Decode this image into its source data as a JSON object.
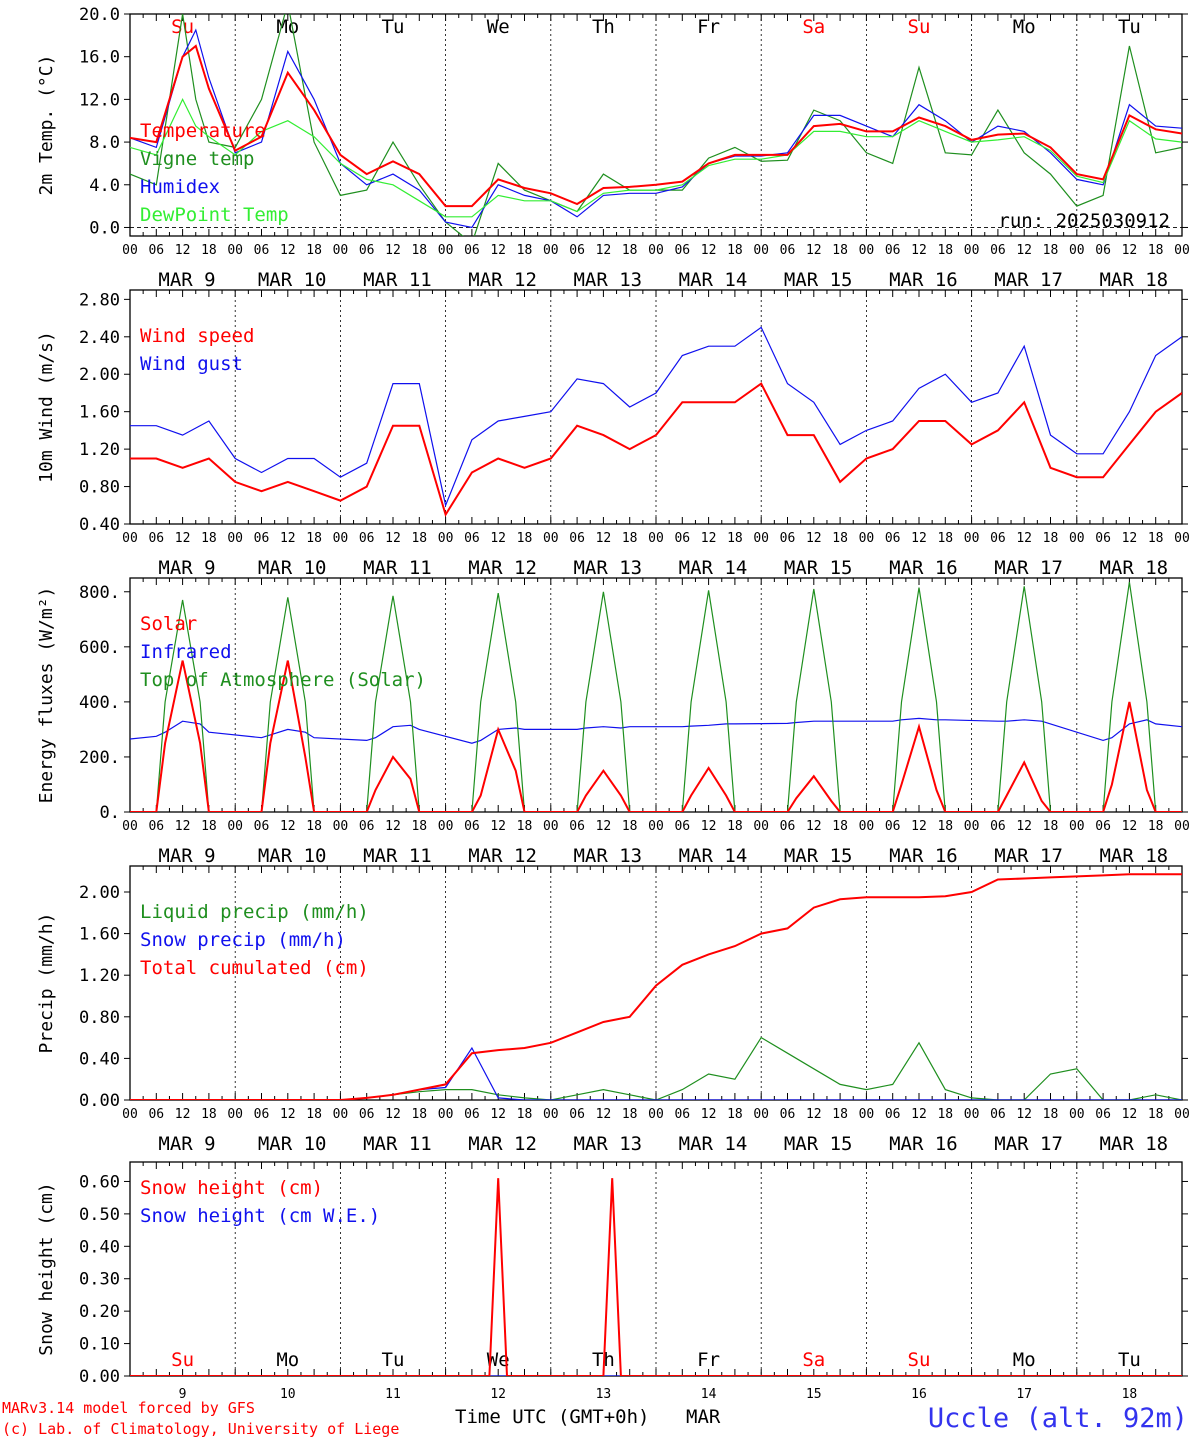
{
  "days": [
    {
      "abbr": "Su",
      "date": "MAR  9",
      "num": "9",
      "weekend": true
    },
    {
      "abbr": "Mo",
      "date": "MAR 10",
      "num": "10",
      "weekend": false
    },
    {
      "abbr": "Tu",
      "date": "MAR 11",
      "num": "11",
      "weekend": false
    },
    {
      "abbr": "We",
      "date": "MAR 12",
      "num": "12",
      "weekend": false
    },
    {
      "abbr": "Th",
      "date": "MAR 13",
      "num": "13",
      "weekend": false
    },
    {
      "abbr": "Fr",
      "date": "MAR 14",
      "num": "14",
      "weekend": false
    },
    {
      "abbr": "Sa",
      "date": "MAR 15",
      "num": "15",
      "weekend": true
    },
    {
      "abbr": "Su",
      "date": "MAR 16",
      "num": "16",
      "weekend": true
    },
    {
      "abbr": "Mo",
      "date": "MAR 17",
      "num": "17",
      "weekend": false
    },
    {
      "abbr": "Tu",
      "date": "MAR 18",
      "num": "18",
      "weekend": false
    }
  ],
  "hour_labels": [
    "00",
    "06",
    "12",
    "18"
  ],
  "colors": {
    "red": "#ff0000",
    "green": "#1f8f1f",
    "blue": "#1010ee",
    "lightgreen": "#33ee33",
    "site": "#3333ee"
  },
  "footer": {
    "model": "MARv3.14 model forced by GFS",
    "copyright": "(c) Lab. of Climatology, University of Liege",
    "xlabel": "Time UTC (GMT+0h)",
    "month": "MAR",
    "site": "Uccle (alt. 92m)"
  },
  "chart_data": [
    {
      "type": "line",
      "ylabel": "2m Temp. (°C)",
      "ylim": [
        -0.8,
        20
      ],
      "yticks": [
        "0.0",
        "4.0",
        "8.0",
        "12.0",
        "16.0",
        "20.0"
      ],
      "ytick_values": [
        0,
        4,
        8,
        12,
        16,
        20
      ],
      "zero_dashed": true,
      "annotation": "run: 2025030912",
      "x_hours": [
        0,
        6,
        12,
        15,
        18,
        24,
        30,
        36,
        42,
        48,
        54,
        60,
        66,
        72,
        78,
        84,
        90,
        96,
        102,
        108,
        114,
        120,
        126,
        132,
        138,
        144,
        150,
        156,
        162,
        168,
        174,
        180,
        186,
        192,
        198,
        204,
        210,
        216,
        222,
        228,
        234,
        240
      ],
      "series": [
        {
          "name": "Temperature",
          "color": "red",
          "values": [
            8.4,
            8.0,
            16.0,
            17.0,
            13.0,
            7.2,
            8.5,
            14.5,
            11.0,
            6.8,
            5.0,
            6.2,
            5.0,
            2.0,
            2.0,
            4.5,
            3.7,
            3.2,
            2.2,
            3.7,
            3.8,
            4.0,
            4.3,
            6.0,
            6.8,
            6.8,
            6.8,
            9.5,
            9.7,
            9.0,
            9.0,
            10.3,
            9.5,
            8.2,
            8.7,
            8.8,
            7.5,
            5.0,
            4.5,
            10.5,
            9.2,
            8.8
          ]
        },
        {
          "name": "Vigne temp",
          "color": "green",
          "values": [
            5.0,
            4.0,
            20.0,
            12.0,
            8.0,
            7.5,
            12.0,
            21.0,
            8.0,
            3.0,
            3.5,
            8.0,
            4.0,
            0.5,
            -1.5,
            6.0,
            3.5,
            2.5,
            1.5,
            5.0,
            3.5,
            3.5,
            3.5,
            6.5,
            7.5,
            6.2,
            6.3,
            11.0,
            10.0,
            7.0,
            6.0,
            15.0,
            7.0,
            6.8,
            11.0,
            7.0,
            5.0,
            2.0,
            3.0,
            17.0,
            7.0,
            7.5
          ]
        },
        {
          "name": "Humidex",
          "color": "blue",
          "values": [
            8.4,
            7.5,
            16.0,
            18.5,
            14.0,
            7.0,
            8.0,
            16.5,
            12.0,
            6.0,
            4.0,
            5.0,
            3.5,
            0.5,
            0.0,
            4.0,
            3.0,
            2.5,
            1.0,
            3.0,
            3.2,
            3.2,
            3.8,
            6.0,
            6.7,
            6.7,
            7.0,
            10.5,
            10.5,
            9.5,
            8.5,
            11.5,
            10.0,
            8.0,
            9.5,
            9.0,
            7.0,
            4.5,
            4.0,
            11.5,
            9.5,
            9.3
          ]
        },
        {
          "name": "DewPoint Temp",
          "color": "lightgreen",
          "values": [
            7.5,
            6.8,
            12.0,
            9.5,
            8.5,
            6.8,
            9.0,
            10.0,
            8.5,
            6.0,
            4.5,
            4.0,
            2.5,
            1.0,
            1.0,
            3.0,
            2.5,
            2.5,
            1.5,
            3.2,
            3.5,
            3.5,
            4.0,
            5.8,
            6.4,
            6.4,
            6.8,
            9.0,
            9.0,
            8.5,
            8.5,
            10.0,
            9.0,
            8.0,
            8.2,
            8.5,
            7.2,
            4.8,
            4.2,
            10.0,
            8.3,
            8.0
          ]
        }
      ]
    },
    {
      "type": "line",
      "ylabel": "10m Wind (m/s)",
      "ylim": [
        0.4,
        2.9
      ],
      "yticks": [
        "0.40",
        "0.80",
        "1.20",
        "1.60",
        "2.00",
        "2.40",
        "2.80"
      ],
      "ytick_values": [
        0.4,
        0.8,
        1.2,
        1.6,
        2.0,
        2.4,
        2.8
      ],
      "x_hours": [
        0,
        6,
        12,
        18,
        24,
        30,
        36,
        42,
        48,
        54,
        60,
        66,
        72,
        78,
        84,
        90,
        96,
        102,
        108,
        114,
        120,
        126,
        132,
        138,
        144,
        150,
        156,
        162,
        168,
        174,
        180,
        186,
        192,
        198,
        204,
        210,
        216,
        222,
        228,
        234,
        240
      ],
      "series": [
        {
          "name": "Wind speed",
          "color": "red",
          "values": [
            1.1,
            1.1,
            1.0,
            1.1,
            0.85,
            0.75,
            0.85,
            0.75,
            0.65,
            0.8,
            1.45,
            1.45,
            0.5,
            0.95,
            1.1,
            1.0,
            1.1,
            1.45,
            1.35,
            1.2,
            1.35,
            1.7,
            1.7,
            1.7,
            1.9,
            1.35,
            1.35,
            0.85,
            1.1,
            1.2,
            1.5,
            1.5,
            1.25,
            1.4,
            1.7,
            1.0,
            0.9,
            0.9,
            1.25,
            1.6,
            1.8
          ]
        },
        {
          "name": "Wind gust",
          "color": "blue",
          "values": [
            1.45,
            1.45,
            1.35,
            1.5,
            1.1,
            0.95,
            1.1,
            1.1,
            0.9,
            1.05,
            1.9,
            1.9,
            0.6,
            1.3,
            1.5,
            1.55,
            1.6,
            1.95,
            1.9,
            1.65,
            1.8,
            2.2,
            2.3,
            2.3,
            2.5,
            1.9,
            1.7,
            1.25,
            1.4,
            1.5,
            1.85,
            2.0,
            1.7,
            1.8,
            2.3,
            1.35,
            1.15,
            1.15,
            1.6,
            2.2,
            2.4
          ]
        }
      ]
    },
    {
      "type": "line",
      "ylabel": "Energy fluxes (W/m²)",
      "ylim": [
        0,
        850
      ],
      "yticks": [
        "0.",
        "200.",
        "400.",
        "600.",
        "800."
      ],
      "ytick_values": [
        0,
        200,
        400,
        600,
        800
      ],
      "x_hours": [
        0,
        6,
        8,
        12,
        16,
        18,
        30,
        32,
        36,
        40,
        42,
        54,
        56,
        60,
        64,
        66,
        78,
        80,
        84,
        88,
        90,
        102,
        104,
        108,
        112,
        114,
        126,
        128,
        132,
        136,
        138,
        150,
        152,
        156,
        160,
        162,
        174,
        176,
        180,
        184,
        186,
        198,
        200,
        204,
        208,
        210,
        222,
        224,
        228,
        232,
        234,
        240
      ],
      "series": [
        {
          "name": "Solar",
          "color": "red",
          "values": [
            0,
            0,
            250,
            550,
            250,
            0,
            0,
            250,
            550,
            200,
            0,
            0,
            80,
            200,
            120,
            0,
            0,
            60,
            300,
            150,
            0,
            0,
            60,
            150,
            60,
            0,
            0,
            60,
            160,
            60,
            0,
            0,
            50,
            130,
            40,
            0,
            0,
            100,
            310,
            80,
            0,
            0,
            60,
            180,
            40,
            0,
            0,
            100,
            400,
            80,
            0,
            0
          ]
        },
        {
          "name": "Infrared",
          "color": "blue",
          "values": [
            265,
            275,
            290,
            330,
            320,
            290,
            270,
            280,
            300,
            290,
            270,
            260,
            270,
            310,
            315,
            300,
            250,
            260,
            300,
            305,
            300,
            300,
            305,
            310,
            305,
            310,
            310,
            312,
            315,
            320,
            320,
            322,
            325,
            330,
            330,
            330,
            330,
            335,
            340,
            335,
            335,
            330,
            330,
            335,
            330,
            320,
            260,
            270,
            320,
            335,
            320,
            310
          ]
        },
        {
          "name": "Top of Atmosphere (Solar)",
          "color": "green",
          "values": [
            0,
            0,
            400,
            770,
            400,
            0,
            0,
            400,
            780,
            400,
            0,
            0,
            400,
            785,
            400,
            0,
            0,
            400,
            795,
            400,
            0,
            0,
            400,
            800,
            400,
            0,
            0,
            400,
            805,
            400,
            0,
            0,
            400,
            810,
            400,
            0,
            0,
            400,
            815,
            400,
            0,
            0,
            400,
            820,
            400,
            0,
            0,
            400,
            835,
            400,
            0,
            0
          ]
        }
      ]
    },
    {
      "type": "line",
      "ylabel": "Precip (mm/h)",
      "ylim": [
        0,
        2.25
      ],
      "yticks": [
        "0.00",
        "0.40",
        "0.80",
        "1.20",
        "1.60",
        "2.00"
      ],
      "ytick_values": [
        0,
        0.4,
        0.8,
        1.2,
        1.6,
        2.0
      ],
      "x_hours": [
        0,
        48,
        54,
        60,
        66,
        72,
        78,
        84,
        90,
        96,
        102,
        108,
        114,
        120,
        126,
        132,
        138,
        144,
        150,
        156,
        162,
        168,
        174,
        180,
        186,
        192,
        198,
        204,
        210,
        216,
        222,
        228,
        234,
        240
      ],
      "series": [
        {
          "name": "Liquid precip (mm/h)",
          "color": "green",
          "values": [
            0,
            0,
            0.02,
            0.05,
            0.08,
            0.1,
            0.1,
            0.05,
            0.02,
            0.0,
            0.05,
            0.1,
            0.05,
            0.0,
            0.1,
            0.25,
            0.2,
            0.6,
            0.45,
            0.3,
            0.15,
            0.1,
            0.15,
            0.55,
            0.1,
            0.02,
            0.0,
            0.0,
            0.25,
            0.3,
            0.0,
            0.0,
            0.05,
            0.0
          ]
        },
        {
          "name": "Snow precip (mm/h)",
          "color": "blue",
          "values": [
            0,
            0,
            0.02,
            0.05,
            0.1,
            0.12,
            0.5,
            0.02,
            0,
            0,
            0,
            0,
            0,
            0,
            0,
            0,
            0,
            0,
            0,
            0,
            0,
            0,
            0,
            0,
            0,
            0,
            0,
            0,
            0,
            0,
            0,
            0,
            0,
            0
          ]
        },
        {
          "name": "Total cumulated (cm)",
          "color": "red",
          "values": [
            0,
            0.0,
            0.02,
            0.05,
            0.1,
            0.15,
            0.45,
            0.48,
            0.5,
            0.55,
            0.65,
            0.75,
            0.8,
            1.1,
            1.3,
            1.4,
            1.48,
            1.6,
            1.65,
            1.85,
            1.93,
            1.95,
            1.95,
            1.95,
            1.96,
            2.0,
            2.12,
            2.13,
            2.14,
            2.15,
            2.16,
            2.17,
            2.17,
            2.17
          ]
        }
      ]
    },
    {
      "type": "line",
      "ylabel": "Snow height (cm)",
      "ylim": [
        0,
        0.66
      ],
      "yticks": [
        "0.00",
        "0.10",
        "0.20",
        "0.30",
        "0.40",
        "0.50",
        "0.60"
      ],
      "ytick_values": [
        0,
        0.1,
        0.2,
        0.3,
        0.4,
        0.5,
        0.6
      ],
      "x_hours": [
        0,
        82,
        84,
        86,
        108,
        110,
        112,
        240
      ],
      "series": [
        {
          "name": "Snow height (cm)",
          "color": "red",
          "values": [
            0,
            0,
            0.61,
            0,
            0,
            0.61,
            0,
            0
          ]
        },
        {
          "name": "Snow height (cm W.E.)",
          "color": "blue",
          "values": [
            0,
            0,
            0,
            0,
            0,
            0,
            0,
            0
          ]
        }
      ]
    }
  ]
}
